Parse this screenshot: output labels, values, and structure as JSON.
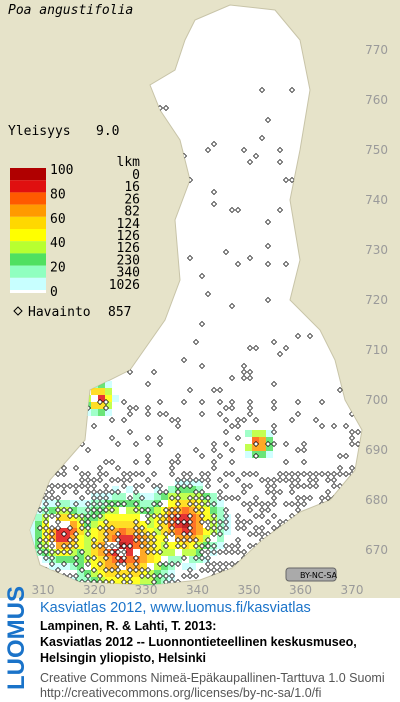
{
  "header": {
    "title": "Poa angustifolia",
    "frequency_label": "Yleisyys",
    "frequency_value": "9.0"
  },
  "legend": {
    "percent_labels": [
      100,
      80,
      60,
      40,
      20,
      0
    ],
    "count_header": "lkm",
    "counts": [
      0,
      16,
      26,
      82,
      124,
      126,
      126,
      230,
      340,
      1026
    ],
    "colors": [
      "#b00000",
      "#e01010",
      "#ff5a00",
      "#ff9a00",
      "#ffd800",
      "#ffff00",
      "#b8ff30",
      "#50e060",
      "#90ffc0",
      "#c8ffff"
    ],
    "observation_label": "Havainto",
    "observation_count": 857
  },
  "map": {
    "xticks": [
      310,
      320,
      330,
      340,
      350,
      360,
      370
    ],
    "yticks": [
      670,
      680,
      690,
      700,
      710,
      720,
      730,
      740,
      750,
      760,
      770
    ],
    "license_badge": "BY-NC-SA"
  },
  "footer": {
    "brand": "LUOMUS",
    "link": "Kasviatlas 2012, www.luomus.fi/kasviatlas",
    "citation_authors": "Lampinen, R. & Lahti, T. 2013:",
    "citation_line1": "Kasviatlas 2012 -- Luonnontieteellinen keskusmuseo,",
    "citation_line2": "Helsingin yliopisto, Helsinki",
    "license": "Creative Commons Nimeä-Epäkaupallinen-Tarttuva 1.0 Suomi",
    "license_url": "http://creativecommons.org/licenses/by-nc-sa/1.0/fi"
  }
}
